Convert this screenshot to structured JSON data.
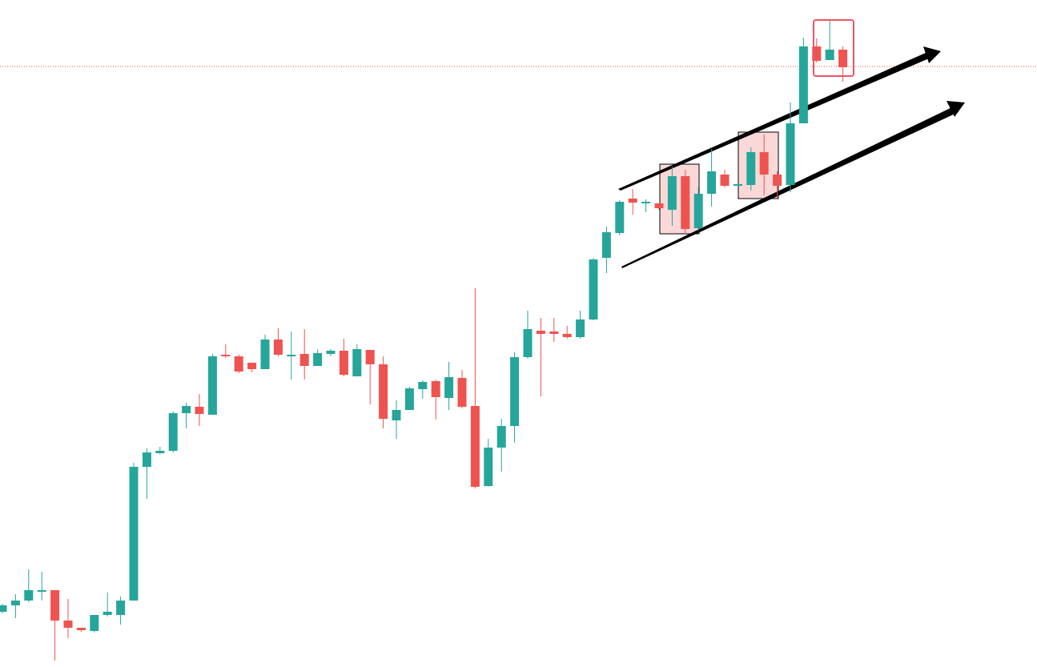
{
  "chart_data": {
    "type": "candlestick",
    "up_color": "#26a69a",
    "down_color": "#ef5350",
    "ylim": [
      0,
      833
    ],
    "price_line": 750,
    "open": [
      69,
      77,
      83,
      94,
      96,
      58,
      49,
      45,
      65,
      65,
      83,
      250,
      267,
      270,
      317,
      325,
      315,
      390,
      388,
      380,
      372,
      409,
      388,
      391,
      376,
      391,
      395,
      363,
      396,
      378,
      308,
      321,
      347,
      357,
      336,
      361,
      326,
      226,
      274,
      301,
      387,
      420,
      419,
      416,
      412,
      434,
      511,
      542,
      585,
      579,
      579,
      571,
      613,
      548,
      591,
      615,
      601,
      602,
      643,
      615,
      602,
      679,
      775,
      758,
      771
    ],
    "high": [
      79,
      91,
      122,
      119,
      96,
      85,
      49,
      65,
      93,
      88,
      255,
      273,
      275,
      319,
      330,
      341,
      391,
      403,
      390,
      380,
      415,
      423,
      419,
      422,
      397,
      397,
      410,
      403,
      396,
      388,
      333,
      350,
      358,
      359,
      381,
      371,
      473,
      285,
      310,
      393,
      445,
      436,
      436,
      426,
      445,
      511,
      550,
      583,
      597,
      584,
      579,
      625,
      621,
      599,
      647,
      621,
      603,
      649,
      665,
      619,
      705,
      786,
      785,
      808,
      775
    ],
    "low": [
      67,
      61,
      81,
      83,
      8,
      36,
      44,
      43,
      63,
      53,
      83,
      210,
      266,
      268,
      298,
      301,
      315,
      386,
      367,
      368,
      372,
      388,
      359,
      359,
      376,
      388,
      363,
      363,
      328,
      298,
      285,
      321,
      335,
      309,
      321,
      323,
      223,
      225,
      244,
      280,
      385,
      338,
      406,
      410,
      410,
      433,
      492,
      539,
      565,
      568,
      571,
      551,
      542,
      545,
      575,
      599,
      601,
      595,
      589,
      585,
      593,
      679,
      755,
      758,
      731
    ],
    "close": [
      77,
      83,
      96,
      96,
      58,
      49,
      46,
      65,
      69,
      83,
      250,
      268,
      270,
      317,
      326,
      316,
      388,
      388,
      369,
      372,
      409,
      390,
      390,
      376,
      392,
      395,
      365,
      397,
      378,
      310,
      321,
      348,
      356,
      337,
      362,
      325,
      225,
      274,
      301,
      387,
      422,
      416,
      416,
      412,
      434,
      509,
      543,
      581,
      580,
      581,
      573,
      613,
      547,
      591,
      619,
      601,
      603,
      643,
      615,
      601,
      679,
      775,
      757,
      771,
      749
    ]
  }
}
